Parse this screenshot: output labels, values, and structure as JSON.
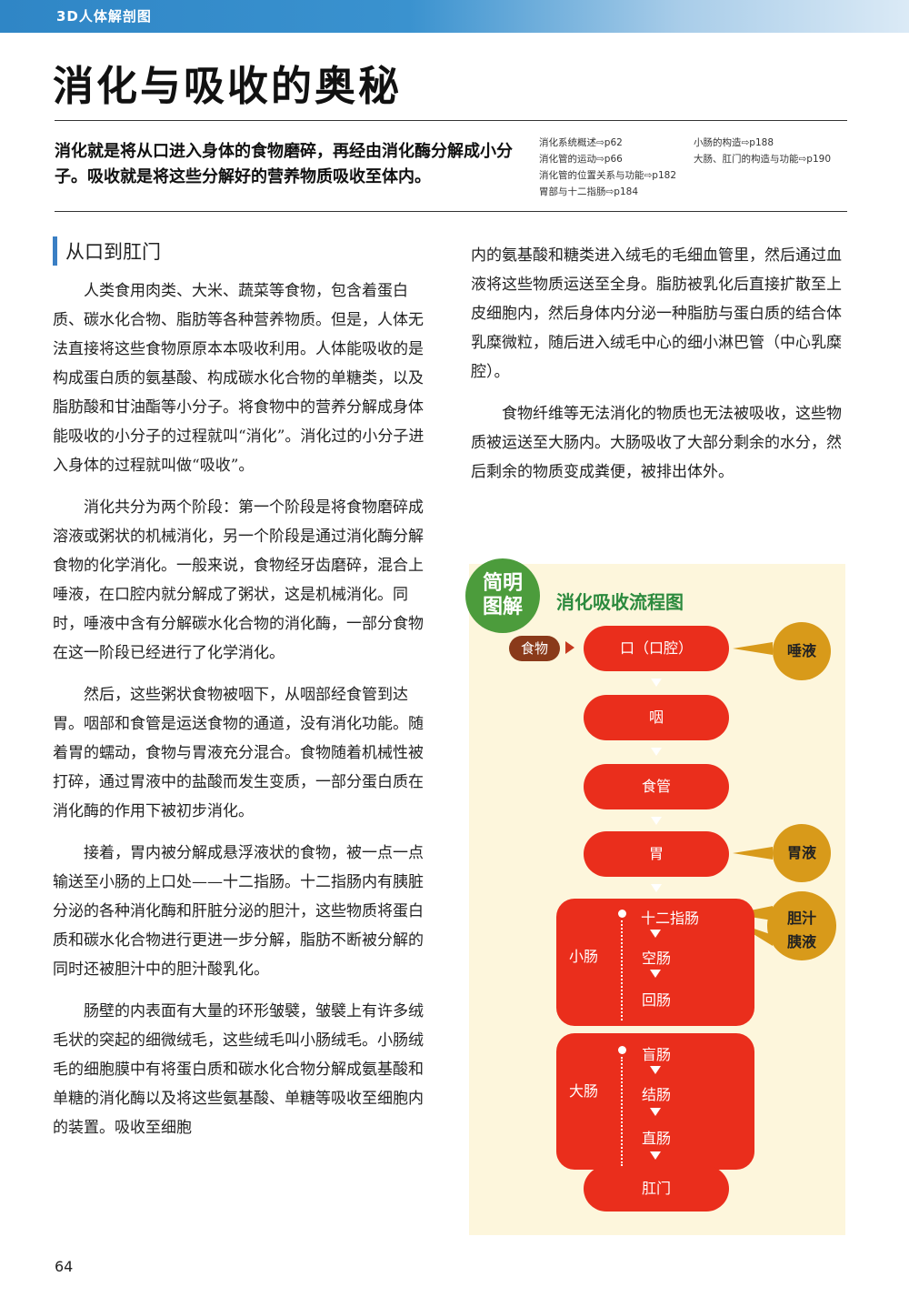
{
  "header": {
    "series": "3D人体解剖图"
  },
  "title": "消化与吸收的奥秘",
  "intro": "消化就是将从口进入身体的食物磨碎，再经由消化酶分解成小分子。吸收就是将这些分解好的营养物质吸收至体内。",
  "references": [
    "消化系统概述⇨p62",
    "消化管的运动⇨p66",
    "消化管的位置关系与功能⇨p182",
    "胃部与十二指肠⇨p184",
    "小肠的构造⇨p188",
    "大肠、肛门的构造与功能⇨p190"
  ],
  "section_title": "从口到肛门",
  "left_paragraphs": [
    "人类食用肉类、大米、蔬菜等食物，包含着蛋白质、碳水化合物、脂肪等各种营养物质。但是，人体无法直接将这些食物原原本本吸收利用。人体能吸收的是构成蛋白质的氨基酸、构成碳水化合物的单糖类，以及脂肪酸和甘油酯等小分子。将食物中的营养分解成身体能吸收的小分子的过程就叫“消化”。消化过的小分子进入身体的过程就叫做“吸收”。",
    "消化共分为两个阶段：第一个阶段是将食物磨碎成溶液或粥状的机械消化，另一个阶段是通过消化酶分解食物的化学消化。一般来说，食物经牙齿磨碎，混合上唾液，在口腔内就分解成了粥状，这是机械消化。同时，唾液中含有分解碳水化合物的消化酶，一部分食物在这一阶段已经进行了化学消化。",
    "然后，这些粥状食物被咽下，从咽部经食管到达胃。咽部和食管是运送食物的通道，没有消化功能。随着胃的蠕动，食物与胃液充分混合。食物随着机械性被打碎，通过胃液中的盐酸而发生变质，一部分蛋白质在消化酶的作用下被初步消化。",
    "接着，胃内被分解成悬浮液状的食物，被一点一点输送至小肠的上口处——十二指肠。十二指肠内有胰脏分泌的各种消化酶和肝脏分泌的胆汁，这些物质将蛋白质和碳水化合物进行更进一步分解，脂肪不断被分解的同时还被胆汁中的胆汁酸乳化。",
    "肠壁的内表面有大量的环形皱襞，皱襞上有许多绒毛状的突起的细微绒毛，这些绒毛叫小肠绒毛。小肠绒毛的细胞膜中有将蛋白质和碳水化合物分解成氨基酸和单糖的消化酶以及将这些氨基酸、单糖等吸收至细胞内的装置。吸收至细胞"
  ],
  "right_paragraphs": [
    "内的氨基酸和糖类进入绒毛的毛细血管里，然后通过血液将这些物质运送至全身。脂肪被乳化后直接扩散至上皮细胞内，然后身体内分泌一种脂肪与蛋白质的结合体乳糜微粒，随后进入绒毛中心的细小淋巴管（中心乳糜腔）。",
    "食物纤维等无法消化的物质也无法被吸收，这些物质被运送至大肠内。大肠吸收了大部分剩余的水分，然后剩余的物质变成粪便，被排出体外。"
  ],
  "diagram": {
    "badge_line1": "简明",
    "badge_line2": "图解",
    "title": "消化吸收流程图",
    "food": "食物",
    "stages": [
      "口（口腔）",
      "咽",
      "食管",
      "胃"
    ],
    "small_intestine": {
      "label": "小肠",
      "parts": [
        "十二指肠",
        "空肠",
        "回肠"
      ]
    },
    "large_intestine": {
      "label": "大肠",
      "parts": [
        "盲肠",
        "结肠",
        "直肠"
      ]
    },
    "anus": "肛门",
    "secretions": {
      "saliva": "唾液",
      "gastric": "胃液",
      "bile": "胆汁",
      "pancreatic": "胰液"
    }
  },
  "page_number": "64"
}
